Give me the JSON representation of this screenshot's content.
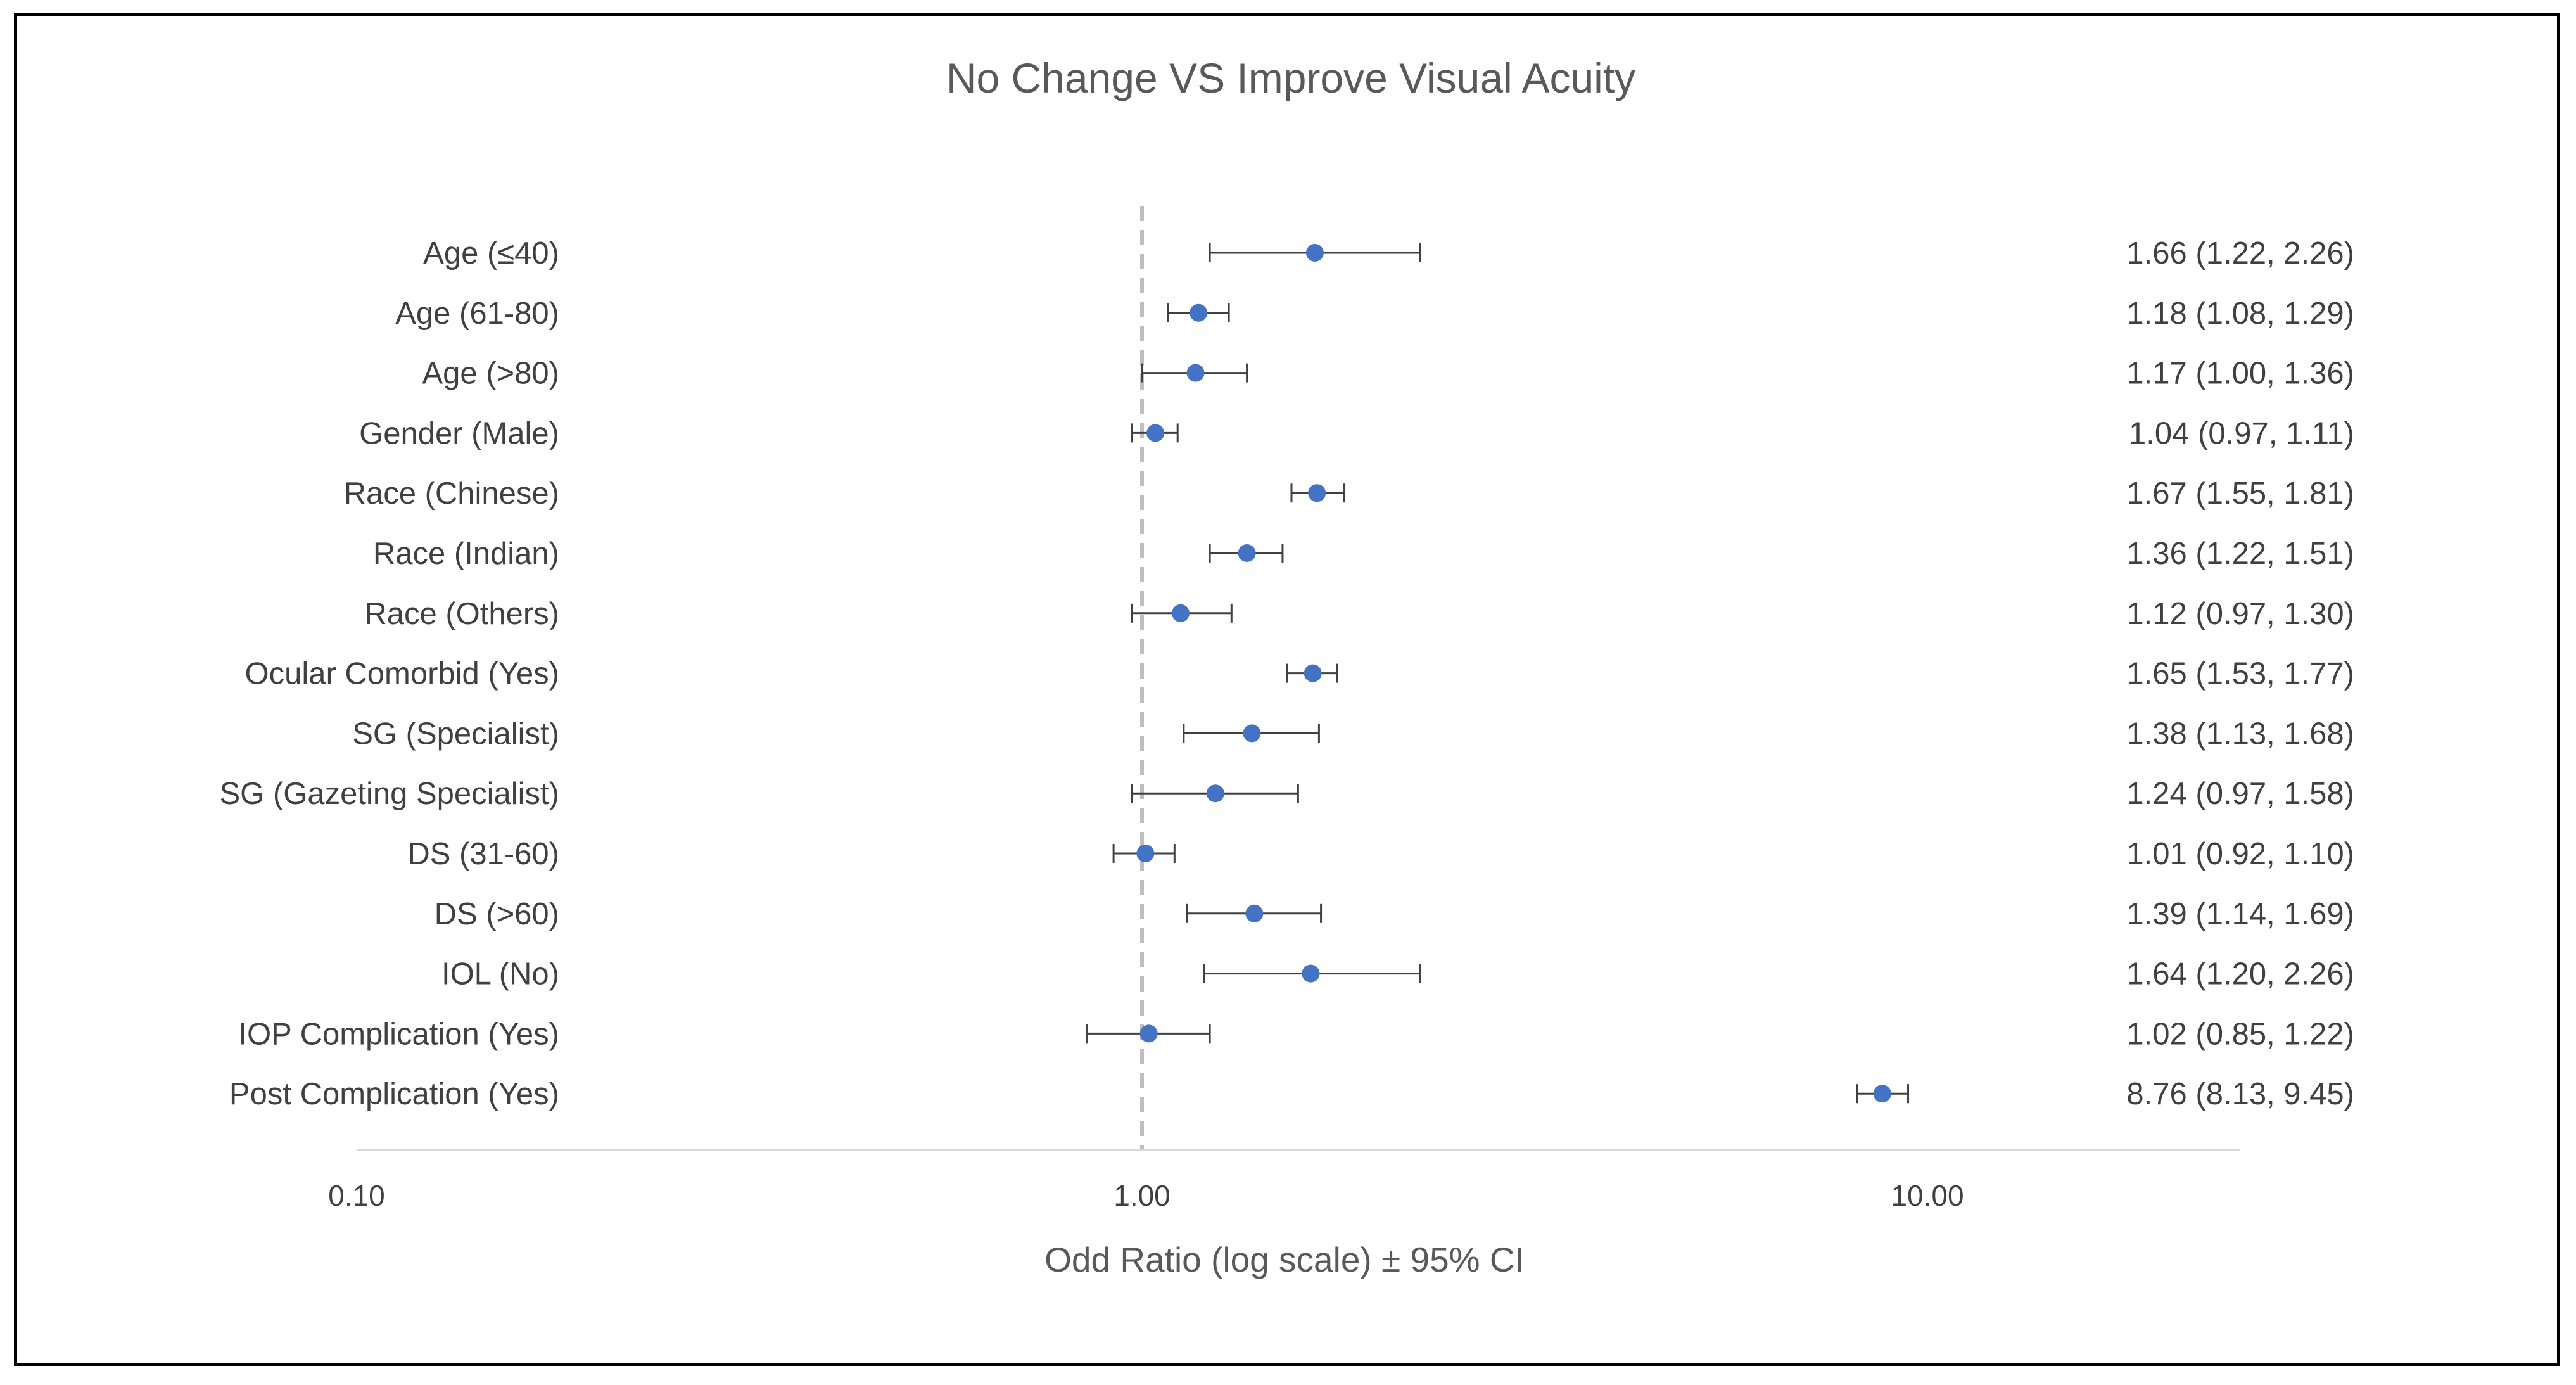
{
  "chart_data": {
    "type": "forest",
    "title": "No Change VS Improve Visual Acuity",
    "xlabel": "Odd Ratio (log scale) ± 95% CI",
    "x_scale": "log",
    "xlim": [
      0.1,
      20
    ],
    "x_ticks": [
      {
        "value": 0.1,
        "label": "0.10"
      },
      {
        "value": 1,
        "label": "1.00"
      },
      {
        "value": 10,
        "label": "10.00"
      }
    ],
    "reference_line": 1,
    "rows": [
      {
        "label": "Age (≤40)",
        "or": 1.66,
        "lower": 1.22,
        "upper": 2.26,
        "text": "1.66 (1.22, 2.26)"
      },
      {
        "label": "Age (61-80)",
        "or": 1.18,
        "lower": 1.08,
        "upper": 1.29,
        "text": "1.18 (1.08, 1.29)"
      },
      {
        "label": "Age (>80)",
        "or": 1.17,
        "lower": 1.0,
        "upper": 1.36,
        "text": "1.17 (1.00, 1.36)"
      },
      {
        "label": "Gender (Male)",
        "or": 1.04,
        "lower": 0.97,
        "upper": 1.11,
        "text": "1.04 (0.97, 1.11)"
      },
      {
        "label": "Race (Chinese)",
        "or": 1.67,
        "lower": 1.55,
        "upper": 1.81,
        "text": "1.67 (1.55, 1.81)"
      },
      {
        "label": "Race (Indian)",
        "or": 1.36,
        "lower": 1.22,
        "upper": 1.51,
        "text": "1.36 (1.22, 1.51)"
      },
      {
        "label": "Race (Others)",
        "or": 1.12,
        "lower": 0.97,
        "upper": 1.3,
        "text": "1.12 (0.97, 1.30)"
      },
      {
        "label": "Ocular Comorbid (Yes)",
        "or": 1.65,
        "lower": 1.53,
        "upper": 1.77,
        "text": "1.65 (1.53, 1.77)"
      },
      {
        "label": "SG (Specialist)",
        "or": 1.38,
        "lower": 1.13,
        "upper": 1.68,
        "text": "1.38 (1.13, 1.68)"
      },
      {
        "label": "SG (Gazeting Specialist)",
        "or": 1.24,
        "lower": 0.97,
        "upper": 1.58,
        "text": "1.24 (0.97, 1.58)"
      },
      {
        "label": "DS (31-60)",
        "or": 1.01,
        "lower": 0.92,
        "upper": 1.1,
        "text": "1.01 (0.92, 1.10)"
      },
      {
        "label": "DS (>60)",
        "or": 1.39,
        "lower": 1.14,
        "upper": 1.69,
        "text": "1.39 (1.14, 1.69)"
      },
      {
        "label": "IOL (No)",
        "or": 1.64,
        "lower": 1.2,
        "upper": 2.26,
        "text": "1.64 (1.20, 2.26)"
      },
      {
        "label": "IOP Complication (Yes)",
        "or": 1.02,
        "lower": 0.85,
        "upper": 1.22,
        "text": "1.02 (0.85, 1.22)"
      },
      {
        "label": "Post Complication (Yes)",
        "or": 8.76,
        "lower": 8.13,
        "upper": 9.45,
        "text": "8.76 (8.13, 9.45)"
      }
    ],
    "colors": {
      "marker": "#4472C4",
      "whisker": "#404040",
      "reference_line": "#BFBFBF",
      "axis_line": "#D9D9D9"
    }
  }
}
